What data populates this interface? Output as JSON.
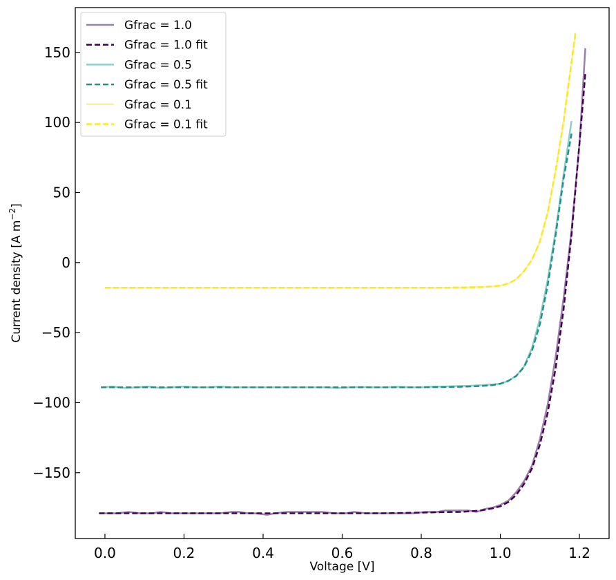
{
  "chart_data": {
    "type": "line",
    "title": "",
    "xlabel": "Voltage [V]",
    "ylabel_main": "Current density [A m",
    "ylabel_sup": "−2",
    "ylabel_end": "]",
    "xlim": [
      -0.075,
      1.275
    ],
    "ylim": [
      -197,
      182
    ],
    "xticks": [
      0.0,
      0.2,
      0.4,
      0.6,
      0.8,
      1.0,
      1.2
    ],
    "xtick_labels": [
      "0.0",
      "0.2",
      "0.4",
      "0.6",
      "0.8",
      "1.0",
      "1.2"
    ],
    "yticks": [
      -150,
      -100,
      -50,
      0,
      50,
      100,
      150
    ],
    "ytick_labels": [
      "−150",
      "−100",
      "−50",
      "0",
      "50",
      "100",
      "150"
    ],
    "grid": false,
    "legend_position": "top-left",
    "series": [
      {
        "name": "Gfrac = 1.0",
        "style": "solid",
        "color": "#9b7fab",
        "x": [
          -0.015,
          0.01,
          0.03,
          0.06,
          0.09,
          0.12,
          0.14,
          0.17,
          0.2,
          0.23,
          0.26,
          0.29,
          0.32,
          0.34,
          0.36,
          0.38,
          0.41,
          0.43,
          0.46,
          0.49,
          0.52,
          0.55,
          0.58,
          0.61,
          0.63,
          0.66,
          0.69,
          0.72,
          0.75,
          0.78,
          0.81,
          0.84,
          0.86,
          0.89,
          0.92,
          0.94,
          0.96,
          0.98,
          1.0,
          1.02,
          1.04,
          1.06,
          1.08,
          1.1,
          1.12,
          1.14,
          1.16,
          1.18,
          1.2,
          1.215
        ],
        "y": [
          -179,
          -179,
          -179,
          -178,
          -179,
          -179,
          -178,
          -179,
          -179,
          -179,
          -179,
          -179,
          -178,
          -178,
          -179,
          -179,
          -180,
          -179,
          -178,
          -178,
          -178,
          -178,
          -179,
          -179,
          -178,
          -179,
          -179,
          -179,
          -179,
          -179,
          -178,
          -178,
          -177,
          -177,
          -177,
          -178,
          -176,
          -175,
          -173,
          -170,
          -164,
          -156,
          -145,
          -126,
          -101,
          -67,
          -25,
          23,
          85,
          153
        ]
      },
      {
        "name": "Gfrac = 1.0 fit",
        "style": "dashed",
        "color": "#440154",
        "x": [
          -0.015,
          0.1,
          0.2,
          0.3,
          0.4,
          0.5,
          0.6,
          0.7,
          0.8,
          0.85,
          0.9,
          0.95,
          0.98,
          1.0,
          1.02,
          1.04,
          1.06,
          1.08,
          1.1,
          1.12,
          1.14,
          1.16,
          1.18,
          1.2,
          1.215
        ],
        "y": [
          -179,
          -179,
          -179,
          -179,
          -179,
          -179,
          -179,
          -179,
          -178.5,
          -178.2,
          -178,
          -177,
          -175.5,
          -174,
          -171,
          -166,
          -158,
          -147,
          -130,
          -107,
          -75,
          -33,
          20,
          85,
          135
        ]
      },
      {
        "name": "Gfrac = 0.5",
        "style": "solid",
        "color": "#8ccfc6",
        "x": [
          -0.01,
          0.02,
          0.05,
          0.08,
          0.11,
          0.14,
          0.17,
          0.2,
          0.23,
          0.26,
          0.29,
          0.32,
          0.35,
          0.38,
          0.41,
          0.44,
          0.47,
          0.5,
          0.53,
          0.56,
          0.59,
          0.62,
          0.65,
          0.68,
          0.71,
          0.74,
          0.77,
          0.8,
          0.83,
          0.86,
          0.89,
          0.92,
          0.95,
          0.98,
          1.0,
          1.02,
          1.04,
          1.06,
          1.08,
          1.1,
          1.12,
          1.14,
          1.16,
          1.18
        ],
        "y": [
          -89,
          -88.5,
          -89.5,
          -89,
          -88.5,
          -89.5,
          -89,
          -88.5,
          -89,
          -89,
          -88.5,
          -89,
          -89,
          -89,
          -89,
          -89,
          -89,
          -89,
          -89,
          -89,
          -89.5,
          -89,
          -88.8,
          -89,
          -89,
          -88.7,
          -89,
          -89,
          -88.6,
          -88.5,
          -88.2,
          -88,
          -87.5,
          -87,
          -86.5,
          -84.5,
          -81,
          -74,
          -61,
          -40,
          -12,
          23,
          63,
          101
        ]
      },
      {
        "name": "Gfrac = 0.5 fit",
        "style": "dashed",
        "color": "#21918c",
        "x": [
          -0.01,
          0.1,
          0.2,
          0.3,
          0.4,
          0.5,
          0.6,
          0.7,
          0.8,
          0.85,
          0.9,
          0.95,
          0.98,
          1.0,
          1.02,
          1.04,
          1.06,
          1.08,
          1.1,
          1.12,
          1.14,
          1.16,
          1.18
        ],
        "y": [
          -89,
          -89,
          -89,
          -89,
          -89,
          -89,
          -89,
          -89,
          -89,
          -88.9,
          -88.7,
          -88.2,
          -87.5,
          -86.5,
          -84.5,
          -81,
          -74.5,
          -63,
          -44,
          -16,
          20,
          60,
          92
        ]
      },
      {
        "name": "Gfrac = 0.1",
        "style": "solid",
        "color": "#fdf19b",
        "x": [
          0.0,
          0.1,
          0.2,
          0.3,
          0.4,
          0.5,
          0.6,
          0.7,
          0.8,
          0.85,
          0.9,
          0.95,
          0.98,
          1.0,
          1.02,
          1.04,
          1.06,
          1.08,
          1.1,
          1.12,
          1.14,
          1.16,
          1.18,
          1.19
        ],
        "y": [
          -18,
          -18,
          -18,
          -18,
          -18,
          -18,
          -18,
          -18,
          -18,
          -18,
          -17.8,
          -17.5,
          -17,
          -16.5,
          -15,
          -12,
          -6,
          2,
          15,
          36,
          66,
          101,
          143,
          164
        ]
      },
      {
        "name": "Gfrac = 0.1 fit",
        "style": "dashed",
        "color": "#fde725",
        "x": [
          0.0,
          0.1,
          0.2,
          0.3,
          0.4,
          0.5,
          0.6,
          0.7,
          0.8,
          0.85,
          0.9,
          0.95,
          0.98,
          1.0,
          1.02,
          1.04,
          1.06,
          1.08,
          1.1,
          1.12,
          1.14,
          1.16,
          1.18,
          1.19
        ],
        "y": [
          -18,
          -18,
          -18,
          -18,
          -18,
          -18,
          -18,
          -18,
          -18,
          -18,
          -17.8,
          -17.5,
          -17,
          -16.5,
          -15,
          -12,
          -6,
          2,
          15,
          36,
          66,
          101,
          143,
          164
        ]
      }
    ]
  }
}
